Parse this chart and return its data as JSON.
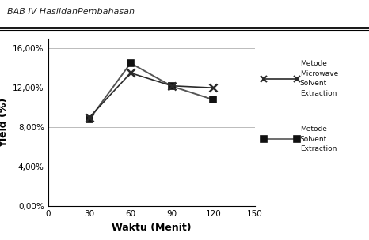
{
  "x": [
    30,
    60,
    90,
    120
  ],
  "microwave": [
    9.0,
    13.5,
    12.2,
    12.0
  ],
  "solvent": [
    8.8,
    14.5,
    12.15,
    10.8
  ],
  "xlabel": "Waktu (Menit)",
  "ylabel": "Yield (%)",
  "xlim": [
    0,
    150
  ],
  "ylim": [
    0.0,
    0.17
  ],
  "yticks": [
    0.0,
    0.04,
    0.08,
    0.12,
    0.16
  ],
  "ytick_labels": [
    "0,00%",
    "4,00%",
    "8,00%",
    "12,00%",
    "16,00%"
  ],
  "xticks": [
    0,
    30,
    60,
    90,
    120,
    150
  ],
  "line_color": "#2a2a2a",
  "solvent_color": "#555555",
  "legend_microwave": "Metode\nMicrowave\nSolvent\nExtraction",
  "legend_solvent": "Metode\nSolvent\nExtraction",
  "header_text": "BAB IV HasildanPembahasan",
  "bg_color": "#ffffff"
}
